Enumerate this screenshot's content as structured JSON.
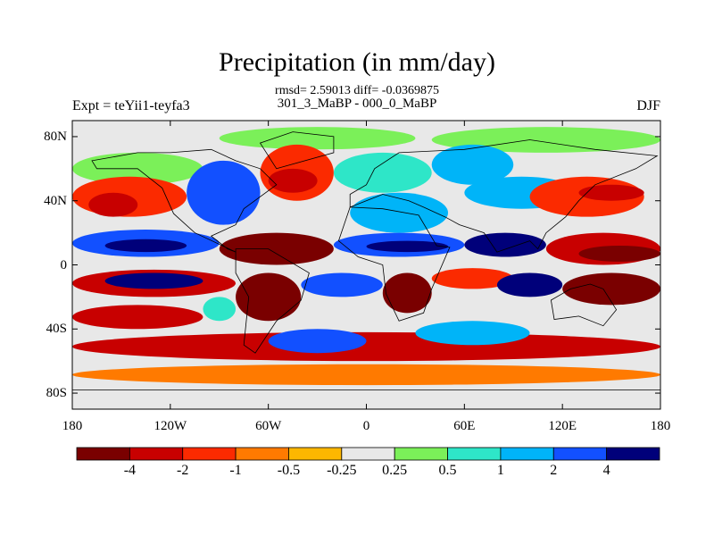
{
  "title": "Precipitation (in mm/day)",
  "stats": "rmsd= 2.59013 diff= -0.0369875",
  "subtitle": "301_3_MaBP - 000_0_MaBP",
  "left_string": "Expt = teYii1-teyfa3",
  "right_string": "DJF",
  "chart_data": {
    "type": "heatmap",
    "projection": "cylindrical-equidistant",
    "x_ticks": [
      "180",
      "120W",
      "60W",
      "0",
      "60E",
      "120E",
      "180"
    ],
    "y_ticks": [
      "80N",
      "40N",
      "0",
      "40S",
      "80S"
    ],
    "xlim": [
      -180,
      180
    ],
    "ylim": [
      -90,
      90
    ],
    "colorbar": {
      "labels": [
        "-4",
        "-2",
        "-1",
        "-0.5",
        "-0.25",
        "0.25",
        "0.5",
        "1",
        "2",
        "4"
      ],
      "colors": [
        "#7a0000",
        "#c80000",
        "#fb2a00",
        "#ff7a00",
        "#fdb700",
        "#e8e8e8",
        "#7bf059",
        "#2ee6c8",
        "#00b4f8",
        "#1250ff",
        "#00007a"
      ]
    },
    "regions": [
      {
        "lon": [
          -180,
          180
        ],
        "lat": [
          -90,
          90
        ],
        "bin": 5
      },
      {
        "lon": [
          -180,
          -100
        ],
        "lat": [
          50,
          70
        ],
        "bin": 6
      },
      {
        "lon": [
          -90,
          30
        ],
        "lat": [
          72,
          86
        ],
        "bin": 6
      },
      {
        "lon": [
          40,
          180
        ],
        "lat": [
          70,
          86
        ],
        "bin": 6
      },
      {
        "lon": [
          -180,
          -110
        ],
        "lat": [
          30,
          55
        ],
        "bin": 2
      },
      {
        "lon": [
          -170,
          -140
        ],
        "lat": [
          30,
          45
        ],
        "bin": 1
      },
      {
        "lon": [
          -110,
          -65
        ],
        "lat": [
          25,
          65
        ],
        "bin": 9
      },
      {
        "lon": [
          -65,
          -20
        ],
        "lat": [
          40,
          75
        ],
        "bin": 2
      },
      {
        "lon": [
          -60,
          -30
        ],
        "lat": [
          45,
          60
        ],
        "bin": 1
      },
      {
        "lon": [
          -20,
          40
        ],
        "lat": [
          45,
          70
        ],
        "bin": 7
      },
      {
        "lon": [
          -10,
          50
        ],
        "lat": [
          20,
          45
        ],
        "bin": 8
      },
      {
        "lon": [
          40,
          90
        ],
        "lat": [
          50,
          75
        ],
        "bin": 8
      },
      {
        "lon": [
          60,
          130
        ],
        "lat": [
          35,
          55
        ],
        "bin": 8
      },
      {
        "lon": [
          100,
          170
        ],
        "lat": [
          30,
          55
        ],
        "bin": 2
      },
      {
        "lon": [
          130,
          170
        ],
        "lat": [
          40,
          50
        ],
        "bin": 1
      },
      {
        "lon": [
          -180,
          -90
        ],
        "lat": [
          5,
          22
        ],
        "bin": 9
      },
      {
        "lon": [
          -160,
          -110
        ],
        "lat": [
          8,
          16
        ],
        "bin": 10
      },
      {
        "lon": [
          -90,
          -20
        ],
        "lat": [
          0,
          20
        ],
        "bin": 0
      },
      {
        "lon": [
          -20,
          60
        ],
        "lat": [
          5,
          20
        ],
        "bin": 9
      },
      {
        "lon": [
          0,
          50
        ],
        "lat": [
          8,
          15
        ],
        "bin": 10
      },
      {
        "lon": [
          60,
          110
        ],
        "lat": [
          5,
          20
        ],
        "bin": 10
      },
      {
        "lon": [
          110,
          180
        ],
        "lat": [
          0,
          20
        ],
        "bin": 1
      },
      {
        "lon": [
          130,
          180
        ],
        "lat": [
          2,
          12
        ],
        "bin": 0
      },
      {
        "lon": [
          -180,
          -80
        ],
        "lat": [
          -20,
          -3
        ],
        "bin": 1
      },
      {
        "lon": [
          -160,
          -100
        ],
        "lat": [
          -15,
          -5
        ],
        "bin": 10
      },
      {
        "lon": [
          -80,
          -40
        ],
        "lat": [
          -35,
          -5
        ],
        "bin": 0
      },
      {
        "lon": [
          -40,
          10
        ],
        "lat": [
          -20,
          -5
        ],
        "bin": 9
      },
      {
        "lon": [
          10,
          40
        ],
        "lat": [
          -30,
          -5
        ],
        "bin": 0
      },
      {
        "lon": [
          40,
          90
        ],
        "lat": [
          -15,
          -2
        ],
        "bin": 2
      },
      {
        "lon": [
          80,
          120
        ],
        "lat": [
          -20,
          -5
        ],
        "bin": 10
      },
      {
        "lon": [
          120,
          180
        ],
        "lat": [
          -25,
          -5
        ],
        "bin": 0
      },
      {
        "lon": [
          -180,
          -100
        ],
        "lat": [
          -40,
          -25
        ],
        "bin": 1
      },
      {
        "lon": [
          -100,
          -80
        ],
        "lat": [
          -35,
          -20
        ],
        "bin": 7
      },
      {
        "lon": [
          -180,
          180
        ],
        "lat": [
          -60,
          -42
        ],
        "bin": 1
      },
      {
        "lon": [
          -60,
          0
        ],
        "lat": [
          -55,
          -40
        ],
        "bin": 9
      },
      {
        "lon": [
          30,
          100
        ],
        "lat": [
          -50,
          -35
        ],
        "bin": 8
      },
      {
        "lon": [
          -180,
          180
        ],
        "lat": [
          -75,
          -62
        ],
        "bin": 3
      },
      {
        "lon": [
          -180,
          180
        ],
        "lat": [
          -90,
          -78
        ],
        "bin": 5
      }
    ],
    "land_outlines": [
      [
        [
          -168,
          65
        ],
        [
          -140,
          70
        ],
        [
          -120,
          70
        ],
        [
          -95,
          72
        ],
        [
          -80,
          65
        ],
        [
          -65,
          60
        ],
        [
          -55,
          50
        ],
        [
          -75,
          35
        ],
        [
          -80,
          25
        ],
        [
          -95,
          18
        ],
        [
          -85,
          10
        ],
        [
          -80,
          8
        ],
        [
          -105,
          20
        ],
        [
          -118,
          32
        ],
        [
          -125,
          48
        ],
        [
          -140,
          60
        ],
        [
          -165,
          60
        ]
      ],
      [
        [
          -80,
          10
        ],
        [
          -60,
          10
        ],
        [
          -35,
          -5
        ],
        [
          -40,
          -22
        ],
        [
          -55,
          -35
        ],
        [
          -68,
          -55
        ],
        [
          -75,
          -50
        ],
        [
          -72,
          -20
        ],
        [
          -80,
          -5
        ]
      ],
      [
        [
          -10,
          36
        ],
        [
          10,
          35
        ],
        [
          32,
          31
        ],
        [
          43,
          12
        ],
        [
          51,
          11
        ],
        [
          40,
          -15
        ],
        [
          35,
          -30
        ],
        [
          20,
          -35
        ],
        [
          12,
          -18
        ],
        [
          10,
          0
        ],
        [
          -5,
          5
        ],
        [
          -17,
          15
        ]
      ],
      [
        [
          -10,
          36
        ],
        [
          -10,
          44
        ],
        [
          0,
          50
        ],
        [
          5,
          60
        ],
        [
          20,
          70
        ],
        [
          60,
          72
        ],
        [
          100,
          78
        ],
        [
          140,
          72
        ],
        [
          178,
          68
        ],
        [
          165,
          60
        ],
        [
          140,
          50
        ],
        [
          130,
          40
        ],
        [
          122,
          30
        ],
        [
          110,
          20
        ],
        [
          105,
          10
        ],
        [
          100,
          15
        ],
        [
          80,
          8
        ],
        [
          72,
          20
        ],
        [
          57,
          25
        ],
        [
          48,
          30
        ],
        [
          35,
          36
        ],
        [
          26,
          40
        ],
        [
          10,
          44
        ]
      ],
      [
        [
          113,
          -22
        ],
        [
          125,
          -15
        ],
        [
          137,
          -12
        ],
        [
          145,
          -15
        ],
        [
          153,
          -28
        ],
        [
          145,
          -38
        ],
        [
          130,
          -32
        ],
        [
          115,
          -34
        ]
      ],
      [
        [
          -55,
          60
        ],
        [
          -20,
          70
        ],
        [
          -20,
          80
        ],
        [
          -45,
          83
        ],
        [
          -65,
          76
        ]
      ],
      [
        [
          -180,
          -78
        ],
        [
          180,
          -78
        ],
        [
          180,
          -90
        ],
        [
          -180,
          -90
        ]
      ]
    ]
  }
}
